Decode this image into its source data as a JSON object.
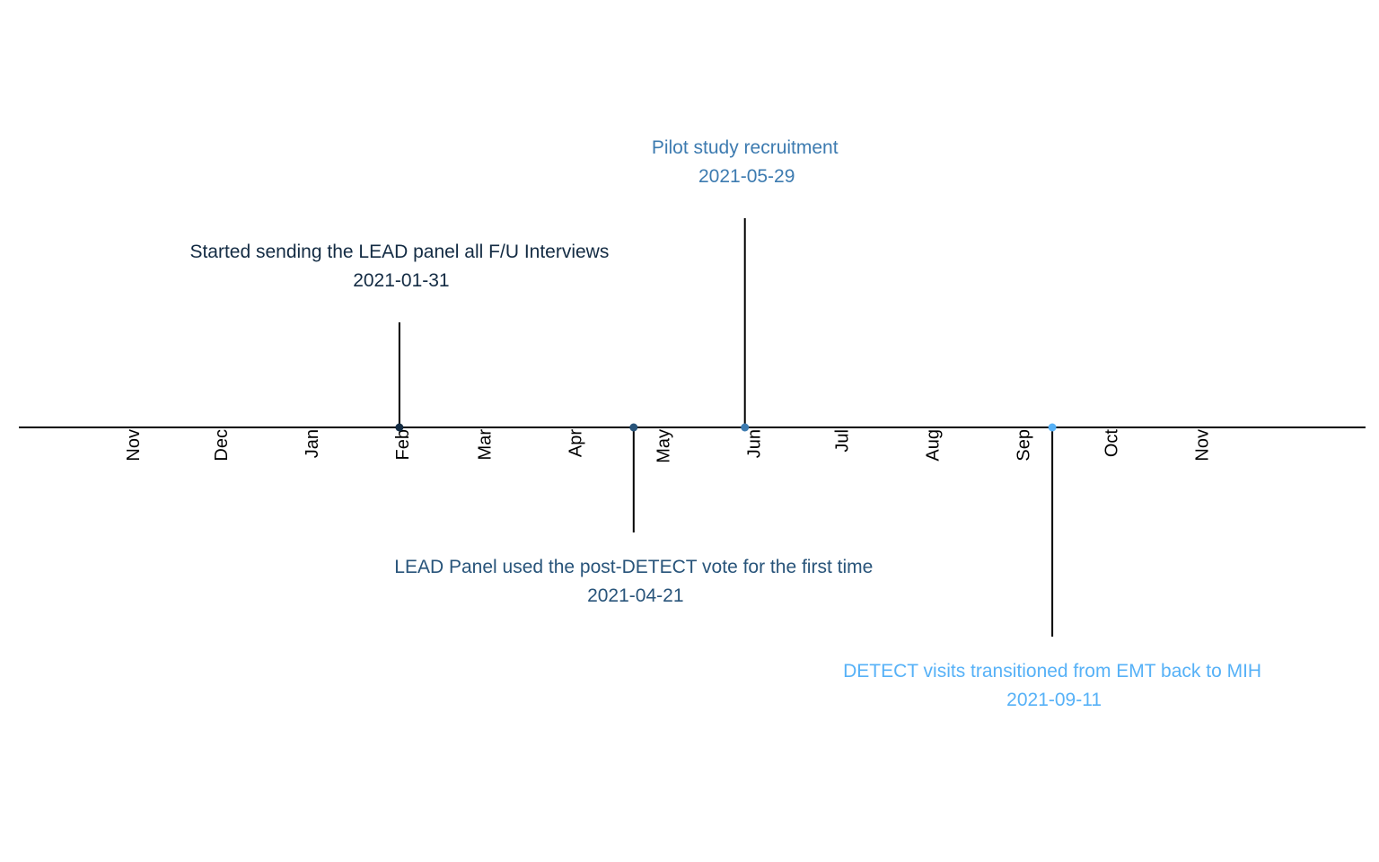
{
  "chart_data": {
    "type": "timeline",
    "title": "",
    "xlabel": "",
    "ylabel": "",
    "x_axis": {
      "range": [
        "2020-09-23",
        "2021-12-27"
      ],
      "month_ticks": [
        {
          "label": "Nov",
          "date": "2020-11-01"
        },
        {
          "label": "Dec",
          "date": "2020-12-01"
        },
        {
          "label": "Jan",
          "date": "2021-01-01"
        },
        {
          "label": "Feb",
          "date": "2021-02-01"
        },
        {
          "label": "Mar",
          "date": "2021-03-01"
        },
        {
          "label": "Apr",
          "date": "2021-04-01"
        },
        {
          "label": "May",
          "date": "2021-05-01"
        },
        {
          "label": "Jun",
          "date": "2021-06-01"
        },
        {
          "label": "Jul",
          "date": "2021-07-01"
        },
        {
          "label": "Aug",
          "date": "2021-08-01"
        },
        {
          "label": "Sep",
          "date": "2021-09-01"
        },
        {
          "label": "Oct",
          "date": "2021-10-01"
        },
        {
          "label": "Nov",
          "date": "2021-11-01"
        }
      ]
    },
    "events": [
      {
        "label": "Started sending the LEAD panel all F/U Interviews",
        "date": "2021-01-31",
        "date_label": "2021-01-31",
        "side": "above",
        "stem_level": 1,
        "color": "#132b43"
      },
      {
        "label": "LEAD Panel used the post-DETECT vote for the first time",
        "date": "2021-04-21",
        "date_label": "2021-04-21",
        "side": "below",
        "stem_level": 1,
        "color": "#28547a"
      },
      {
        "label": "Pilot study recruitment",
        "date": "2021-05-29",
        "date_label": "2021-05-29",
        "side": "above",
        "stem_level": 2,
        "color": "#3d7bb0"
      },
      {
        "label": "DETECT visits transitioned from EMT back to MIH",
        "date": "2021-09-11",
        "date_label": "2021-09-11",
        "side": "below",
        "stem_level": 2,
        "color": "#56b1f7"
      }
    ],
    "grid": false,
    "legend": "none"
  }
}
